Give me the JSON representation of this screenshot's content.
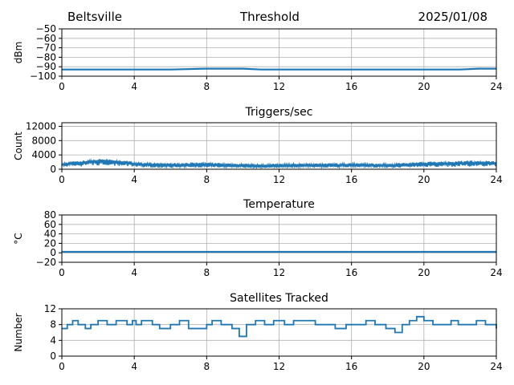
{
  "header": {
    "station": "Beltsville",
    "title": "Threshold",
    "date": "2025/01/08"
  },
  "colors": {
    "series": "#1f77b4",
    "grid": "#b0b0b0",
    "axis": "#000000"
  },
  "chart_data": [
    {
      "type": "line",
      "title": "",
      "ylabel": "dBm",
      "xlim": [
        0,
        24
      ],
      "ylim": [
        -100,
        -50
      ],
      "xticks": [
        0,
        4,
        8,
        12,
        16,
        20,
        24
      ],
      "xtick_labels": [
        "0",
        "4",
        "8",
        "12",
        "16",
        "20",
        "24"
      ],
      "yticks": [
        -100,
        -90,
        -80,
        -70,
        -60,
        -50
      ],
      "ytick_labels": [
        "−100",
        "−90",
        "−80",
        "−70",
        "−60",
        "−50"
      ],
      "grid": true,
      "series": [
        {
          "x": [
            0,
            2,
            4,
            6,
            8,
            9,
            10,
            11,
            12,
            14,
            16,
            18,
            20,
            22,
            23,
            24
          ],
          "y": [
            -93,
            -93,
            -93,
            -93,
            -92,
            -92,
            -92,
            -93,
            -93,
            -93,
            -93,
            -93,
            -93,
            -93,
            -92,
            -92
          ]
        }
      ]
    },
    {
      "type": "line",
      "title": "Triggers/sec",
      "ylabel": "Count",
      "xlim": [
        0,
        24
      ],
      "ylim": [
        0,
        13000
      ],
      "xticks": [
        0,
        4,
        8,
        12,
        16,
        20,
        24
      ],
      "xtick_labels": [
        "0",
        "4",
        "8",
        "12",
        "16",
        "20",
        "24"
      ],
      "yticks": [
        0,
        4000,
        8000,
        12000
      ],
      "ytick_labels": [
        "0",
        "4000",
        "8000",
        "12000"
      ],
      "grid": true,
      "series": [
        {
          "x": [
            0,
            0.5,
            1,
            1.5,
            2,
            2.5,
            3,
            3.5,
            4,
            5,
            6,
            7,
            8,
            9,
            10,
            11,
            12,
            13,
            14,
            15,
            16,
            17,
            18,
            19,
            20,
            21,
            22,
            23,
            24
          ],
          "y": [
            1500,
            1800,
            2000,
            2200,
            2500,
            2600,
            2300,
            2100,
            1700,
            1400,
            1300,
            1400,
            1500,
            1300,
            1200,
            1100,
            1200,
            1200,
            1300,
            1300,
            1400,
            1300,
            1200,
            1400,
            1600,
            1800,
            1900,
            2000,
            1800
          ],
          "band": [
            1200,
            1400,
            1600,
            1800,
            2000,
            2300,
            1900,
            1700,
            1300,
            900,
            800,
            900,
            1000,
            900,
            800,
            700,
            800,
            800,
            900,
            900,
            1000,
            900,
            800,
            900,
            1100,
            1300,
            1400,
            1500,
            1300
          ]
        }
      ]
    },
    {
      "type": "line",
      "title": "Temperature",
      "ylabel": "°C",
      "xlim": [
        0,
        24
      ],
      "ylim": [
        -20,
        80
      ],
      "xticks": [
        0,
        4,
        8,
        12,
        16,
        20,
        24
      ],
      "xtick_labels": [
        "0",
        "4",
        "8",
        "12",
        "16",
        "20",
        "24"
      ],
      "yticks": [
        -20,
        0,
        20,
        40,
        60,
        80
      ],
      "ytick_labels": [
        "−20",
        "0",
        "20",
        "40",
        "60",
        "80"
      ],
      "grid": true,
      "series": [
        {
          "x": [
            0,
            24
          ],
          "y": [
            2,
            2
          ]
        }
      ]
    },
    {
      "type": "line",
      "title": "Satellites Tracked",
      "ylabel": "Number",
      "xlim": [
        0,
        24
      ],
      "ylim": [
        0,
        12
      ],
      "xticks": [
        0,
        4,
        8,
        12,
        16,
        20,
        24
      ],
      "xtick_labels": [
        "0",
        "4",
        "8",
        "12",
        "16",
        "20",
        "24"
      ],
      "yticks": [
        0,
        4,
        8,
        12
      ],
      "ytick_labels": [
        "0",
        "4",
        "8",
        "12"
      ],
      "grid": true,
      "series": [
        {
          "x": [
            0,
            0.3,
            0.6,
            0.9,
            1.3,
            1.6,
            2.0,
            2.5,
            3.0,
            3.6,
            3.9,
            4.1,
            4.4,
            5.0,
            5.4,
            6.0,
            6.5,
            7.0,
            7.6,
            8.0,
            8.3,
            8.8,
            9.4,
            9.8,
            10.2,
            10.7,
            11.2,
            11.7,
            12.3,
            12.8,
            13.3,
            14.0,
            14.6,
            15.1,
            15.7,
            16.2,
            16.8,
            17.3,
            17.9,
            18.4,
            18.8,
            19.2,
            19.6,
            20.0,
            20.5,
            21.1,
            21.5,
            21.9,
            22.4,
            22.9,
            23.4,
            24.0
          ],
          "y": [
            7,
            8,
            9,
            8,
            7,
            8,
            9,
            8,
            9,
            8,
            9,
            8,
            9,
            8,
            7,
            8,
            9,
            7,
            7,
            8,
            9,
            8,
            7,
            5,
            8,
            9,
            8,
            9,
            8,
            9,
            9,
            8,
            8,
            7,
            8,
            8,
            9,
            8,
            7,
            6,
            8,
            9,
            10,
            9,
            8,
            8,
            9,
            8,
            8,
            9,
            8,
            7
          ]
        }
      ]
    }
  ]
}
